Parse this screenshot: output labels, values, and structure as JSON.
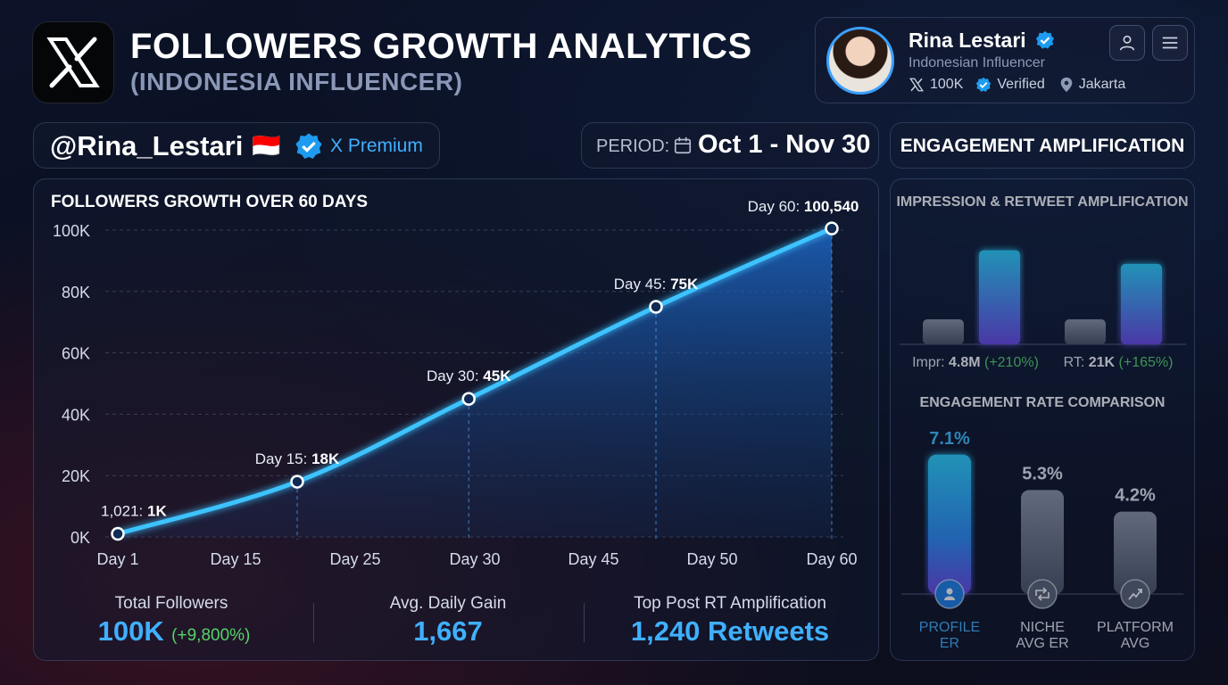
{
  "header": {
    "title": "FOLLOWERS GROWTH ANALYTICS",
    "subtitle": "(INDONESIA INFLUENCER)"
  },
  "profile": {
    "name": "Rina Lestari",
    "role": "Indonesian Influencer",
    "followers": "100K",
    "verified": "Verified",
    "location": "Jakarta"
  },
  "handle": {
    "username": "@Rina_Lestari",
    "flag": "🇮🇩",
    "premium": "X Premium"
  },
  "period": {
    "label": "PERIOD:",
    "value": "Oct 1 - Nov 30"
  },
  "engagement_title": "ENGAGEMENT AMPLIFICATION",
  "stats": {
    "total_label": "Total Followers",
    "total_value": "100K",
    "total_change": "(+9,800%)",
    "avg_label": "Avg. Daily Gain",
    "avg_value": "1,667",
    "top_label": "Top Post RT Amplification",
    "top_value": "1,240 Retweets"
  },
  "colors": {
    "accent": "#3fb0ff",
    "positive": "#56d36a",
    "line": "#3ec3ff"
  },
  "chart_data": [
    {
      "type": "area",
      "title": "FOLLOWERS GROWTH OVER 60 DAYS",
      "x_ticks": [
        "Day 1",
        "Day 15",
        "Day 25",
        "Day 30",
        "Day 45",
        "Day 50",
        "Day 60"
      ],
      "y_ticks": [
        "100K",
        "80K",
        "60K",
        "40K",
        "20K",
        "0K"
      ],
      "ylim": [
        0,
        100000
      ],
      "grid": true,
      "points": [
        {
          "day": 1,
          "value": 1021,
          "label_prefix": "1,021: ",
          "label_value": "1K"
        },
        {
          "day": 15,
          "value": 18000,
          "label_prefix": "Day 15: ",
          "label_value": "18K"
        },
        {
          "day": 30,
          "value": 45000,
          "label_prefix": "Day 30: ",
          "label_value": "45K"
        },
        {
          "day": 45,
          "value": 75000,
          "label_prefix": "Day 45: ",
          "label_value": "75K"
        },
        {
          "day": 60,
          "value": 100540,
          "label_prefix": "Day 60: ",
          "label_value": "100,540"
        }
      ]
    },
    {
      "type": "bar",
      "title": "IMPRESSION & RETWEET AMPLIFICATION",
      "groups": [
        {
          "label_prefix": "Impr: ",
          "value_text": "4.8M",
          "change": "(+210%)",
          "baseline": 1,
          "current": 3.1
        },
        {
          "label_prefix": "RT: ",
          "value_text": "21K",
          "change": "(+165%)",
          "baseline": 1,
          "current": 2.65
        }
      ]
    },
    {
      "type": "bar",
      "title": "ENGAGEMENT RATE COMPARISON",
      "categories": [
        "PROFILE ER",
        "NICHE AVG ER",
        "PLATFORM AVG"
      ],
      "category_lines": [
        [
          "PROFILE",
          "ER"
        ],
        [
          "NICHE",
          "AVG ER"
        ],
        [
          "PLATFORM",
          "AVG"
        ]
      ],
      "values": [
        7.1,
        5.3,
        4.2
      ],
      "value_labels": [
        "7.1%",
        "5.3%",
        "4.2%"
      ],
      "icons": [
        "user-icon",
        "retweet-icon",
        "trend-icon"
      ]
    }
  ]
}
